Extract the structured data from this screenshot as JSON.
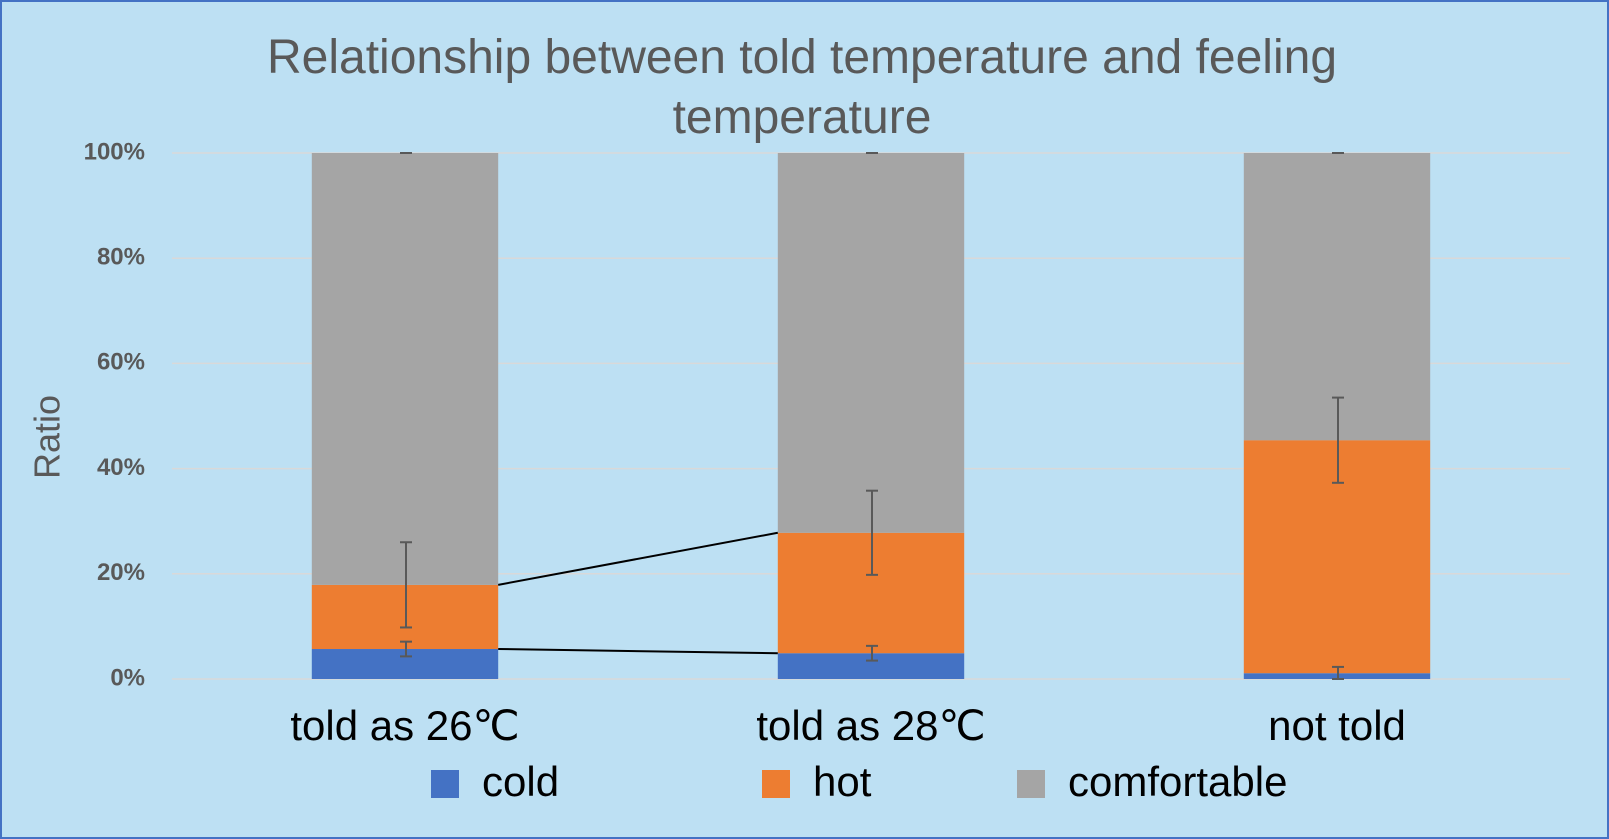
{
  "chart_data": {
    "type": "stacked_bar",
    "title": "Relationship between told temperature and feeling temperature",
    "ylabel": "Ratio",
    "categories": [
      "told as 26℃",
      "told as 28℃",
      "not told"
    ],
    "series": [
      {
        "name": "cold",
        "color": "#4472c4",
        "values": [
          5.7,
          4.9,
          1.1
        ],
        "errors": [
          1.4,
          1.4,
          1.2
        ]
      },
      {
        "name": "hot",
        "color": "#ed7d31",
        "values": [
          12.2,
          22.9,
          44.3
        ],
        "errors": [
          8.1,
          8.0,
          8.1
        ]
      },
      {
        "name": "comfortable",
        "color": "#a5a5a5",
        "values": [
          82.1,
          72.2,
          54.6
        ],
        "errors": [
          0,
          0,
          0
        ]
      }
    ],
    "ylim": [
      0,
      100
    ],
    "yticks": [
      {
        "value": 0,
        "label": "0%"
      },
      {
        "value": 20,
        "label": "20%"
      },
      {
        "value": 40,
        "label": "40%"
      },
      {
        "value": 60,
        "label": "60%"
      },
      {
        "value": 80,
        "label": "80%"
      },
      {
        "value": 100,
        "label": "100%"
      }
    ],
    "grid": true,
    "legend": "bottom",
    "series_lines": {
      "from": 0,
      "to": 1
    }
  }
}
